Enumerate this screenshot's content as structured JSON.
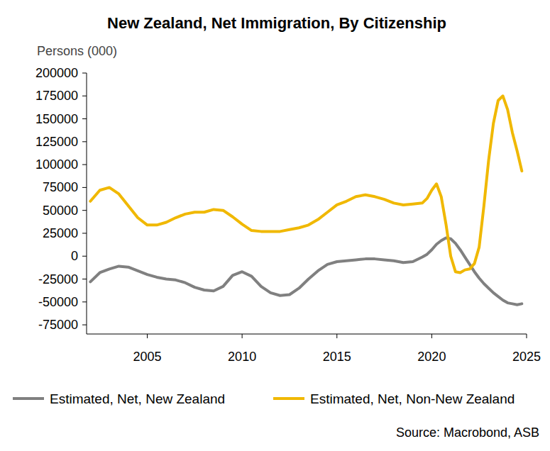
{
  "chart_data": {
    "type": "line",
    "title": "New Zealand, Net Immigration, By Citizenship",
    "y_label": "Persons (000)",
    "source": "Source: Macrobond, ASB",
    "x": [
      2002.0,
      2002.5,
      2003.0,
      2003.5,
      2004.0,
      2004.5,
      2005.0,
      2005.5,
      2006.0,
      2006.5,
      2007.0,
      2007.5,
      2008.0,
      2008.5,
      2009.0,
      2009.5,
      2010.0,
      2010.5,
      2011.0,
      2011.5,
      2012.0,
      2012.5,
      2013.0,
      2013.5,
      2014.0,
      2014.5,
      2015.0,
      2015.5,
      2016.0,
      2016.5,
      2017.0,
      2017.5,
      2018.0,
      2018.5,
      2019.0,
      2019.5,
      2019.75,
      2020.0,
      2020.25,
      2020.5,
      2020.75,
      2021.0,
      2021.25,
      2021.5,
      2021.75,
      2022.0,
      2022.25,
      2022.5,
      2022.75,
      2023.0,
      2023.25,
      2023.5,
      2023.75,
      2024.0,
      2024.25,
      2024.5,
      2024.75
    ],
    "series": [
      {
        "name": "Estimated, Net, New Zealand",
        "color": "#808080",
        "values": [
          -28000,
          -18000,
          -14000,
          -11000,
          -12000,
          -16000,
          -20000,
          -23000,
          -25000,
          -26000,
          -29000,
          -34000,
          -37000,
          -38000,
          -33000,
          -21000,
          -17000,
          -22000,
          -33000,
          -40000,
          -43000,
          -42000,
          -35000,
          -25000,
          -16000,
          -9000,
          -6000,
          -5000,
          -4000,
          -3000,
          -3000,
          -4000,
          -5000,
          -7000,
          -6000,
          -1000,
          2000,
          7000,
          13000,
          17000,
          20000,
          19000,
          14000,
          7000,
          -1000,
          -9000,
          -17000,
          -24000,
          -30000,
          -35000,
          -40000,
          -44000,
          -48000,
          -51000,
          -52000,
          -53000,
          -52000
        ]
      },
      {
        "name": "Estimated, Net, Non-New Zealand",
        "color": "#F0B800",
        "values": [
          60000,
          72000,
          75000,
          68000,
          55000,
          42000,
          34000,
          34000,
          37000,
          42000,
          46000,
          48000,
          48000,
          51000,
          50000,
          43000,
          35000,
          28000,
          27000,
          27000,
          27000,
          29000,
          31000,
          34000,
          40000,
          48000,
          56000,
          60000,
          65000,
          67000,
          65000,
          62000,
          58000,
          56000,
          57000,
          58000,
          63000,
          72000,
          79000,
          65000,
          35000,
          0,
          -17000,
          -18000,
          -15000,
          -14000,
          -8000,
          10000,
          55000,
          105000,
          145000,
          170000,
          175000,
          160000,
          135000,
          115000,
          93000
        ]
      }
    ],
    "xlim": [
      2001.8,
      2025
    ],
    "xticks": [
      2005,
      2010,
      2015,
      2020,
      2025
    ],
    "ylim": [
      -85000,
      200000
    ],
    "yticks": [
      -75000,
      -50000,
      -25000,
      0,
      25000,
      50000,
      75000,
      100000,
      125000,
      150000,
      175000,
      200000
    ],
    "grid": false,
    "legend": "bottom"
  }
}
